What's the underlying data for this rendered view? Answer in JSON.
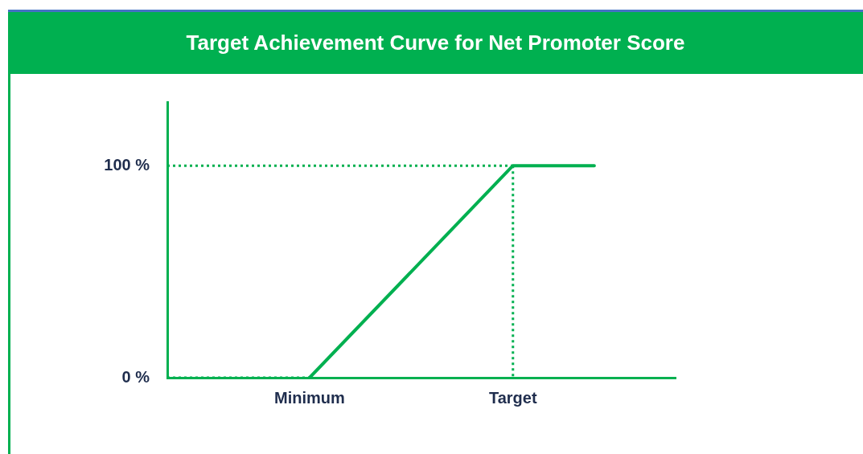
{
  "chart_data": {
    "type": "line",
    "title": "Target Achievement Curve for Net Promoter Score",
    "categories": [
      null,
      null,
      null,
      null,
      null,
      null,
      null,
      "Minimum",
      null,
      null,
      null,
      null,
      null,
      null,
      null,
      null,
      null,
      "Target",
      null,
      null,
      null,
      null,
      null,
      null,
      null,
      null
    ],
    "ylim": [
      0,
      130
    ],
    "yticks": [
      {
        "value": 0,
        "label": "0 %"
      },
      {
        "value": 100,
        "label": "100 %"
      }
    ],
    "legend": false,
    "marker": "none",
    "series": [
      {
        "color": "#00b050",
        "line_style": "solid",
        "values": [
          null,
          null,
          null,
          null,
          null,
          null,
          null,
          0,
          null,
          null,
          null,
          null,
          null,
          null,
          null,
          null,
          null,
          100,
          null,
          null,
          null,
          100,
          null,
          null,
          null,
          null
        ]
      },
      {
        "color": "#00b050",
        "line_style": "dotted",
        "values": [
          100,
          null,
          null,
          null,
          null,
          null,
          null,
          null,
          null,
          null,
          null,
          null,
          null,
          null,
          null,
          null,
          null,
          100,
          null,
          null,
          null,
          null,
          null,
          null,
          null,
          null
        ]
      },
      {
        "color": "#00b050",
        "line_style": "dotted",
        "values": [
          0,
          null,
          null,
          null,
          null,
          null,
          null,
          0,
          null,
          null,
          null,
          null,
          null,
          null,
          null,
          null,
          null,
          null,
          null,
          null,
          null,
          null,
          null,
          null,
          null,
          null
        ]
      },
      {
        "color": "#00b050",
        "line_style": "dotted",
        "x": [
          "Target",
          "Target"
        ],
        "values": [
          100,
          0
        ]
      }
    ]
  }
}
